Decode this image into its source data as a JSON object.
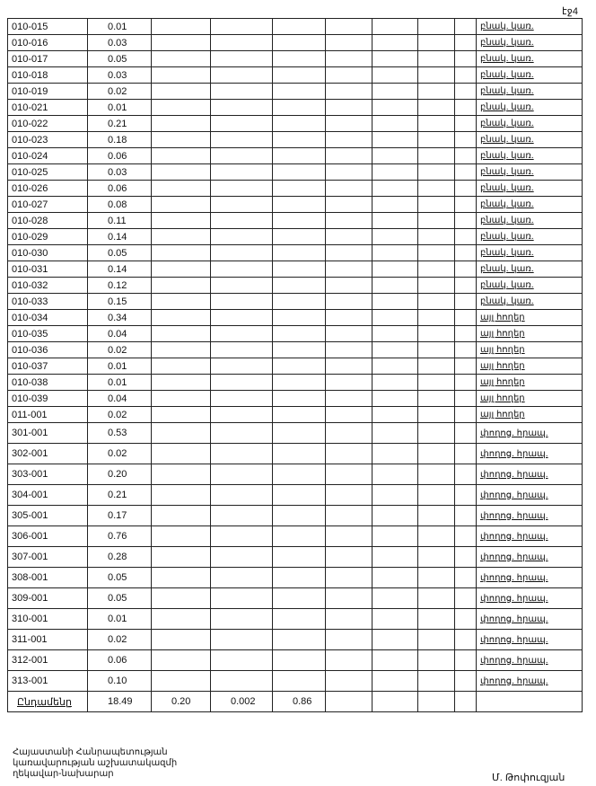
{
  "page_label": "էջ4",
  "rows": [
    [
      "010-015",
      "0.01",
      "բնակ. կառ."
    ],
    [
      "010-016",
      "0.03",
      "բնակ. կառ."
    ],
    [
      "010-017",
      "0.05",
      "բնակ. կառ."
    ],
    [
      "010-018",
      "0.03",
      "բնակ. կառ."
    ],
    [
      "010-019",
      "0.02",
      "բնակ. կառ."
    ],
    [
      "010-021",
      "0.01",
      "բնակ. կառ."
    ],
    [
      "010-022",
      "0.21",
      "բնակ. կառ."
    ],
    [
      "010-023",
      "0.18",
      "բնակ. կառ."
    ],
    [
      "010-024",
      "0.06",
      "բնակ. կառ."
    ],
    [
      "010-025",
      "0.03",
      "բնակ. կառ."
    ],
    [
      "010-026",
      "0.06",
      "բնակ. կառ."
    ],
    [
      "010-027",
      "0.08",
      "բնակ. կառ."
    ],
    [
      "010-028",
      "0.11",
      "բնակ. կառ."
    ],
    [
      "010-029",
      "0.14",
      "բնակ. կառ."
    ],
    [
      "010-030",
      "0.05",
      "բնակ. կառ."
    ],
    [
      "010-031",
      "0.14",
      "բնակ. կառ."
    ],
    [
      "010-032",
      "0.12",
      "բնակ. կառ."
    ],
    [
      "010-033",
      "0.15",
      "բնակ. կառ."
    ],
    [
      "010-034",
      "0.34",
      "այլ հողեր"
    ],
    [
      "010-035",
      "0.04",
      "այլ հողեր"
    ],
    [
      "010-036",
      "0.02",
      "այլ հողեր"
    ],
    [
      "010-037",
      "0.01",
      "այլ հողեր"
    ],
    [
      "010-038",
      "0.01",
      "այլ հողեր"
    ],
    [
      "010-039",
      "0.04",
      "այլ հողեր"
    ],
    [
      "011-001",
      "0.02",
      "այլ հողեր"
    ],
    [
      "301-001",
      "0.53",
      "փողոց. հրապ."
    ],
    [
      "302-001",
      "0.02",
      "փողոց. հրապ."
    ],
    [
      "303-001",
      "0.20",
      "փողոց. հրապ."
    ],
    [
      "304-001",
      "0.21",
      "փողոց. հրապ."
    ],
    [
      "305-001",
      "0.17",
      "փողոց. հրապ."
    ],
    [
      "306-001",
      "0.76",
      "փողոց. հրապ."
    ],
    [
      "307-001",
      "0.28",
      "փողոց. հրապ."
    ],
    [
      "308-001",
      "0.05",
      "փողոց. հրապ."
    ],
    [
      "309-001",
      "0.05",
      "փողոց. հրապ."
    ],
    [
      "310-001",
      "0.01",
      "փողոց. հրապ."
    ],
    [
      "311-001",
      "0.02",
      "փողոց. հրապ."
    ],
    [
      "312-001",
      "0.06",
      "փողոց. հրապ."
    ],
    [
      "313-001",
      "0.10",
      "փողոց. հրապ."
    ]
  ],
  "total": {
    "label": "Ընդամենը",
    "values": [
      "18.49",
      "0.20",
      "0.002",
      "0.86"
    ]
  },
  "footer": {
    "line1": "Հայաստանի Հանրապետության",
    "line2": "կառավարության աշխատակազմի",
    "line3": "ղեկավար-նախարար",
    "signature": "Մ. Թոփուզյան"
  }
}
